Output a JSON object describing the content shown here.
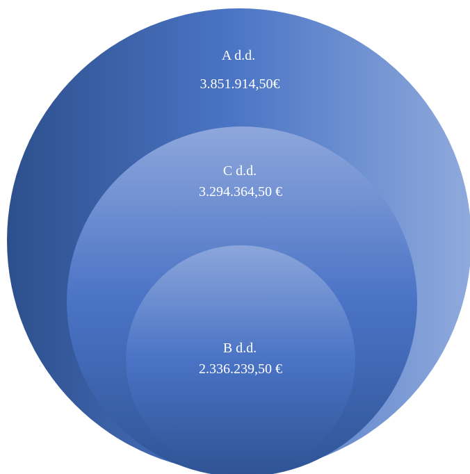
{
  "circles": [
    {
      "name": "A d.d.",
      "value": "3.851.914,50€"
    },
    {
      "name": "C d.d.",
      "value": "3.294.364,50 €"
    },
    {
      "name": "B d.d.",
      "value": "2.336.239,50 €"
    }
  ],
  "colors": {
    "outer_dark": "#2d4f8c",
    "outer_mid": "#4a74c4",
    "outer_light": "#8faadc",
    "middle_top": "#8ea7dc",
    "middle_mid": "#4a73c5",
    "middle_bottom": "#2f5596",
    "inner_top": "#8ca6db",
    "inner_mid": "#4a73c5",
    "inner_bottom": "#2f5393",
    "label": "#ffffff"
  }
}
